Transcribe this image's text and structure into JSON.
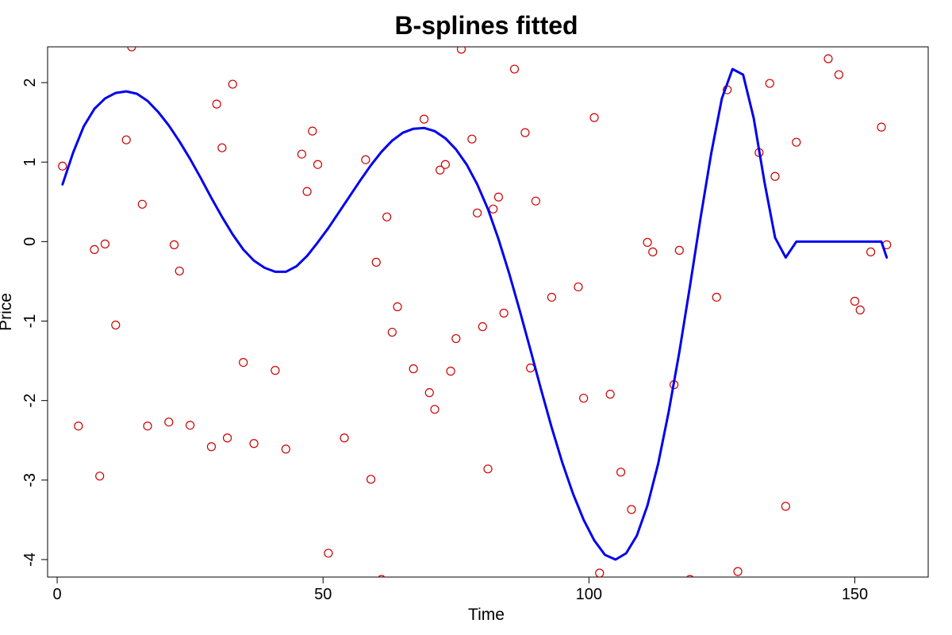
{
  "chart_data": {
    "type": "scatter",
    "title": "B-splines fitted",
    "xlabel": "Time",
    "ylabel": "Price",
    "xlim": [
      -1.8,
      163.8
    ],
    "ylim": [
      -4.22,
      2.45
    ],
    "xticks": [
      0,
      50,
      100,
      150
    ],
    "yticks": [
      -4,
      -3,
      -2,
      -1,
      0,
      1,
      2
    ],
    "grid": false,
    "legend": "none",
    "series": [
      {
        "kind": "points",
        "color": "#cc0000",
        "marker": "open-circle",
        "x": [
          1,
          4,
          7,
          8,
          9,
          11,
          13,
          14,
          16,
          17,
          21,
          22,
          23,
          25,
          29,
          30,
          31,
          32,
          33,
          35,
          37,
          41,
          43,
          46,
          47,
          48,
          49,
          51,
          54,
          58,
          59,
          60,
          61,
          62,
          63,
          64,
          67,
          69,
          70,
          71,
          72,
          73,
          74,
          75,
          76,
          78,
          79,
          80,
          81,
          82,
          83,
          84,
          86,
          88,
          89,
          90,
          93,
          98,
          99,
          101,
          102,
          104,
          106,
          108,
          111,
          112,
          116,
          117,
          119,
          124,
          126,
          128,
          132,
          134,
          135,
          137,
          139,
          145,
          147,
          150,
          151,
          153,
          155,
          156
        ],
        "y": [
          0.95,
          -2.32,
          -0.1,
          -2.95,
          -0.03,
          -1.05,
          1.28,
          2.45,
          0.47,
          -2.32,
          -2.27,
          -0.04,
          -0.37,
          -2.31,
          -2.58,
          1.73,
          1.18,
          -2.47,
          1.98,
          -1.52,
          -2.54,
          -1.62,
          -2.61,
          1.1,
          0.63,
          1.39,
          0.97,
          -3.92,
          -2.47,
          1.03,
          -2.99,
          -0.26,
          -4.25,
          0.31,
          -1.14,
          -0.82,
          -1.6,
          1.54,
          -1.9,
          -2.11,
          0.9,
          0.97,
          -1.63,
          -1.22,
          2.42,
          1.29,
          0.36,
          -1.07,
          -2.86,
          0.41,
          0.56,
          -0.9,
          2.17,
          1.37,
          -1.59,
          0.51,
          -0.7,
          -0.57,
          -1.97,
          1.56,
          -4.17,
          -1.92,
          -2.9,
          -3.37,
          -0.01,
          -0.13,
          -1.8,
          -0.11,
          -4.25,
          -0.7,
          1.91,
          -4.15,
          1.12,
          1.99,
          0.82,
          -3.33,
          1.25,
          2.3,
          2.1,
          -0.75,
          -0.86,
          -0.13,
          1.44,
          -0.04
        ]
      },
      {
        "kind": "line",
        "color": "#0000ee",
        "x": [
          1,
          3,
          5,
          7,
          9,
          11,
          13,
          15,
          17,
          19,
          21,
          23,
          25,
          27,
          29,
          31,
          33,
          35,
          37,
          39,
          41,
          43,
          45,
          47,
          49,
          51,
          53,
          55,
          57,
          59,
          61,
          63,
          65,
          67,
          69,
          71,
          73,
          75,
          77,
          79,
          81,
          83,
          85,
          87,
          89,
          91,
          93,
          95,
          97,
          99,
          101,
          103,
          105,
          107,
          109,
          111,
          113,
          115,
          117,
          119,
          121,
          123,
          125,
          127,
          129,
          131,
          133,
          135,
          137,
          139,
          141,
          143,
          145,
          147,
          149,
          151,
          153,
          155,
          156
        ],
        "y": [
          0.72,
          1.12,
          1.45,
          1.67,
          1.8,
          1.87,
          1.89,
          1.86,
          1.77,
          1.63,
          1.46,
          1.26,
          1.04,
          0.8,
          0.55,
          0.31,
          0.09,
          -0.1,
          -0.24,
          -0.33,
          -0.38,
          -0.38,
          -0.31,
          -0.18,
          -0.01,
          0.17,
          0.37,
          0.57,
          0.77,
          0.96,
          1.13,
          1.27,
          1.37,
          1.42,
          1.43,
          1.39,
          1.3,
          1.16,
          0.97,
          0.72,
          0.41,
          0.03,
          -0.4,
          -0.87,
          -1.36,
          -1.86,
          -2.34,
          -2.78,
          -3.17,
          -3.5,
          -3.76,
          -3.94,
          -4.0,
          -3.92,
          -3.7,
          -3.32,
          -2.8,
          -2.14,
          -1.39,
          -0.56,
          0.3,
          1.11,
          1.8,
          2.17,
          2.1,
          1.55,
          0.75,
          0.05,
          -0.2,
          0,
          0,
          0,
          0,
          0,
          0,
          0,
          0,
          0,
          0
        ]
      }
    ]
  }
}
